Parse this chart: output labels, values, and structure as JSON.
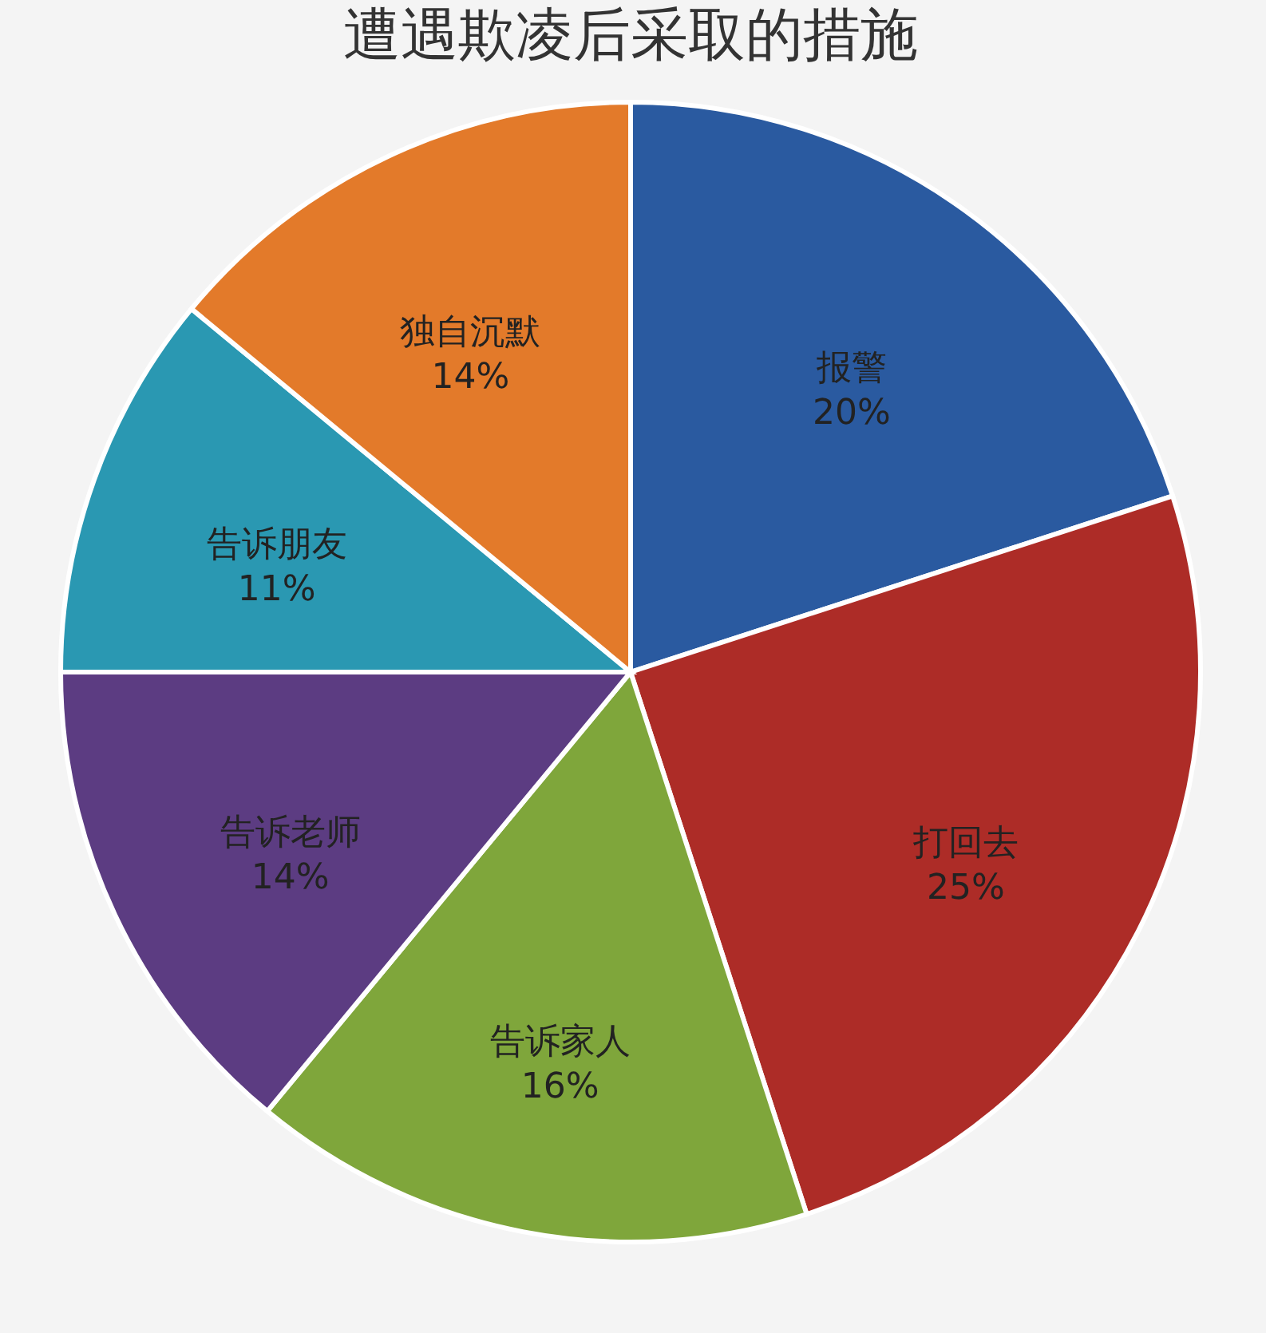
{
  "chart_data": {
    "type": "pie",
    "title": "遭遇欺凌后采取的措施",
    "categories": [
      "报警",
      "打回去",
      "告诉家人",
      "告诉老师",
      "告诉朋友",
      "独自沉默"
    ],
    "values": [
      20,
      25,
      16,
      14,
      11,
      14
    ],
    "value_labels": [
      "20%",
      "25%",
      "16%",
      "14%",
      "11%",
      "14%"
    ],
    "colors": [
      "#2a5aa0",
      "#ad2c27",
      "#7fa63b",
      "#5c3c82",
      "#2a98b2",
      "#e37a2a"
    ]
  }
}
